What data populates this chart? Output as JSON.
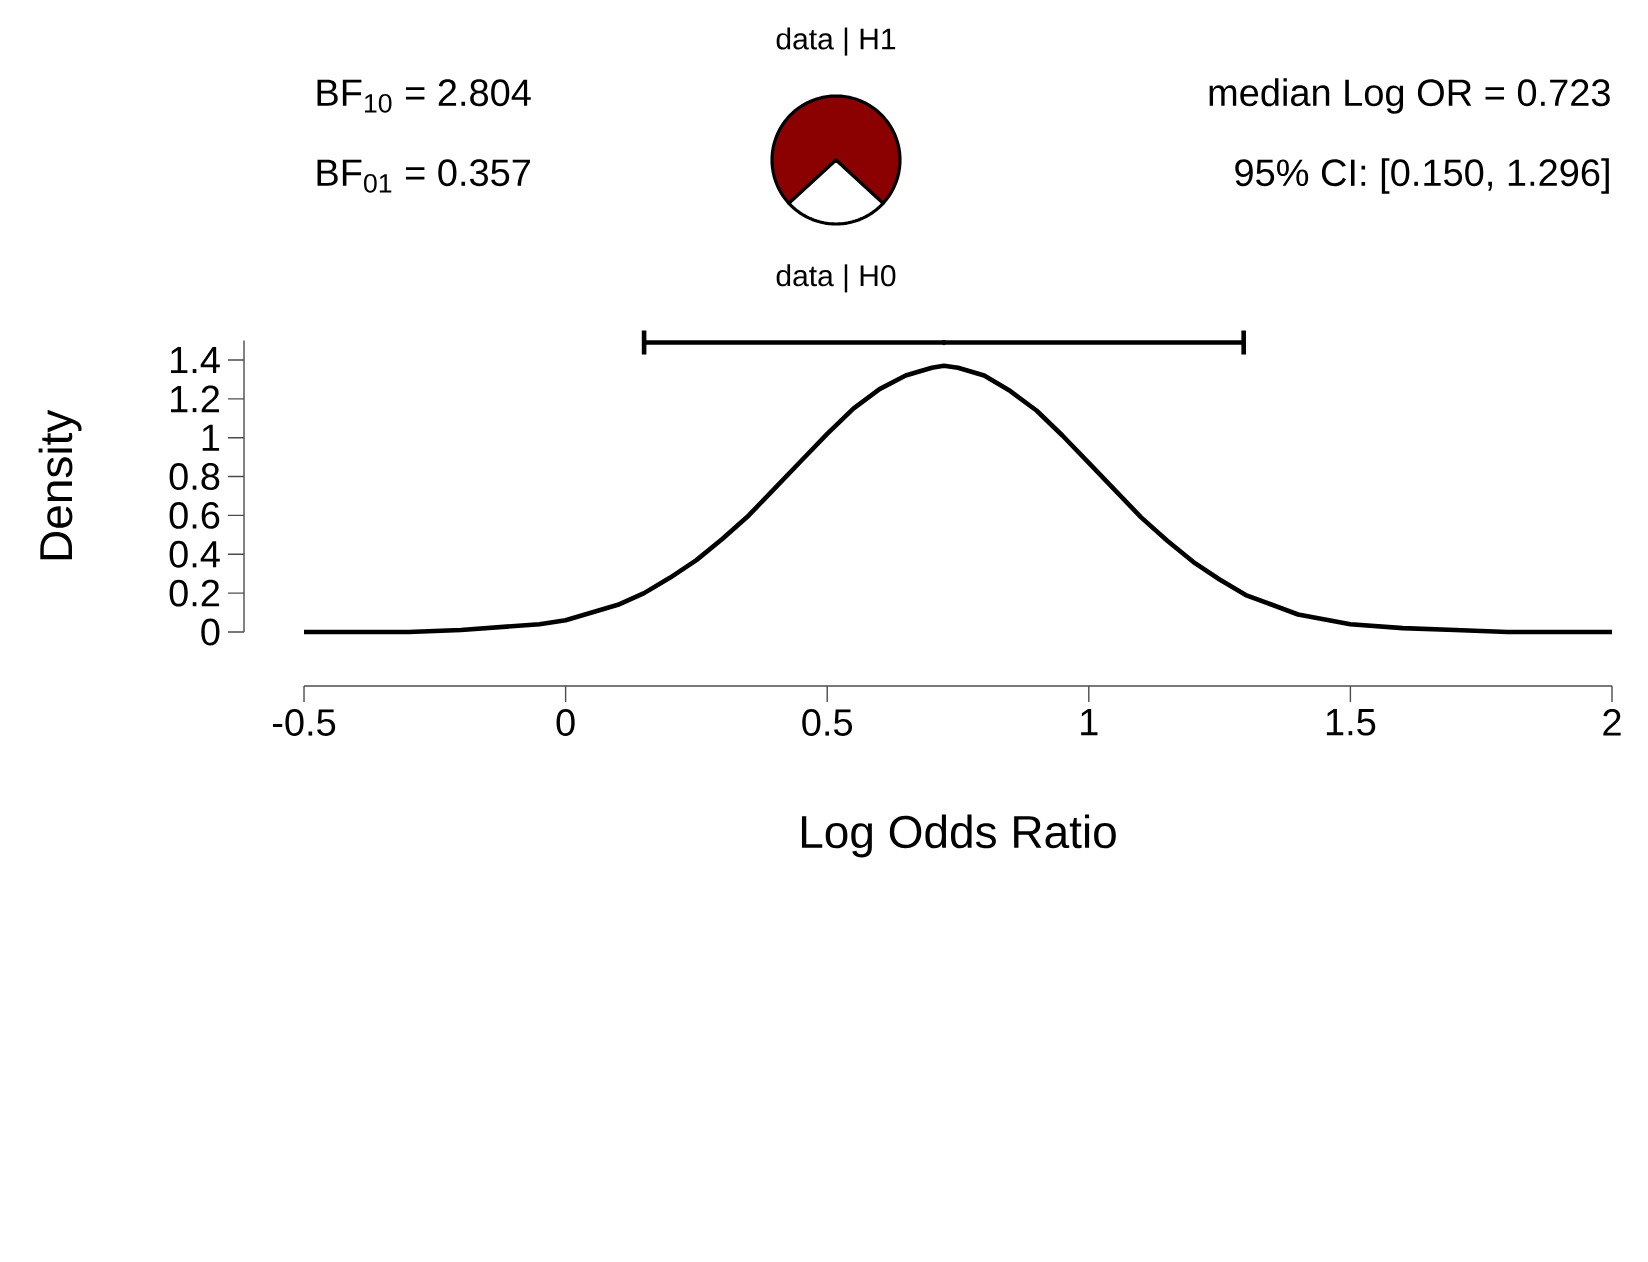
{
  "chart_data": [
    {
      "type": "pie",
      "categories": [
        "data | H1",
        "data | H0"
      ],
      "values": [
        73.7,
        26.3
      ],
      "colors": [
        "#8b0000",
        "#ffffff"
      ]
    },
    {
      "type": "line",
      "xlabel": "Log Odds Ratio",
      "ylabel": "Density",
      "annotations": [
        "BF$_{10}$ = 2.804",
        "BF$_{01}$ = 0.357",
        "median Log OR =  0.723",
        "95% CI: [0.150, 1.296]"
      ],
      "xlim": [
        -0.5,
        2
      ],
      "ylim": [
        0,
        1.5
      ],
      "xticks": [
        -0.5,
        0,
        0.5,
        1,
        1.5,
        2
      ],
      "yticks": [
        0,
        0.2,
        0.4,
        0.6,
        0.8,
        1,
        1.2,
        1.4
      ],
      "series": [
        {
          "type": "line",
          "color": "#000000",
          "x": [
            -0.5,
            -0.4,
            -0.3,
            -0.2,
            -0.1,
            -0.05,
            0,
            0.05,
            0.1,
            0.15,
            0.2,
            0.25,
            0.3,
            0.35,
            0.4,
            0.45,
            0.5,
            0.55,
            0.6,
            0.65,
            0.7,
            0.723,
            0.75,
            0.8,
            0.85,
            0.9,
            0.95,
            1.0,
            1.05,
            1.1,
            1.15,
            1.2,
            1.25,
            1.3,
            1.35,
            1.4,
            1.5,
            1.6,
            1.7,
            1.8,
            2.0
          ],
          "values": [
            0.0,
            0.0,
            0.0,
            0.01,
            0.03,
            0.04,
            0.06,
            0.1,
            0.14,
            0.2,
            0.28,
            0.37,
            0.48,
            0.6,
            0.74,
            0.88,
            1.02,
            1.15,
            1.25,
            1.32,
            1.36,
            1.37,
            1.36,
            1.32,
            1.24,
            1.14,
            1.01,
            0.87,
            0.73,
            0.59,
            0.47,
            0.36,
            0.27,
            0.19,
            0.14,
            0.09,
            0.04,
            0.02,
            0.01,
            0.0,
            0.0
          ]
        },
        {
          "type": "scatter",
          "color": "#000000",
          "marker": "none",
          "x": [
            0.723
          ],
          "values": [
            1.49
          ],
          "xerrors": [
            [
              0.15,
              1.296
            ]
          ]
        }
      ]
    }
  ]
}
